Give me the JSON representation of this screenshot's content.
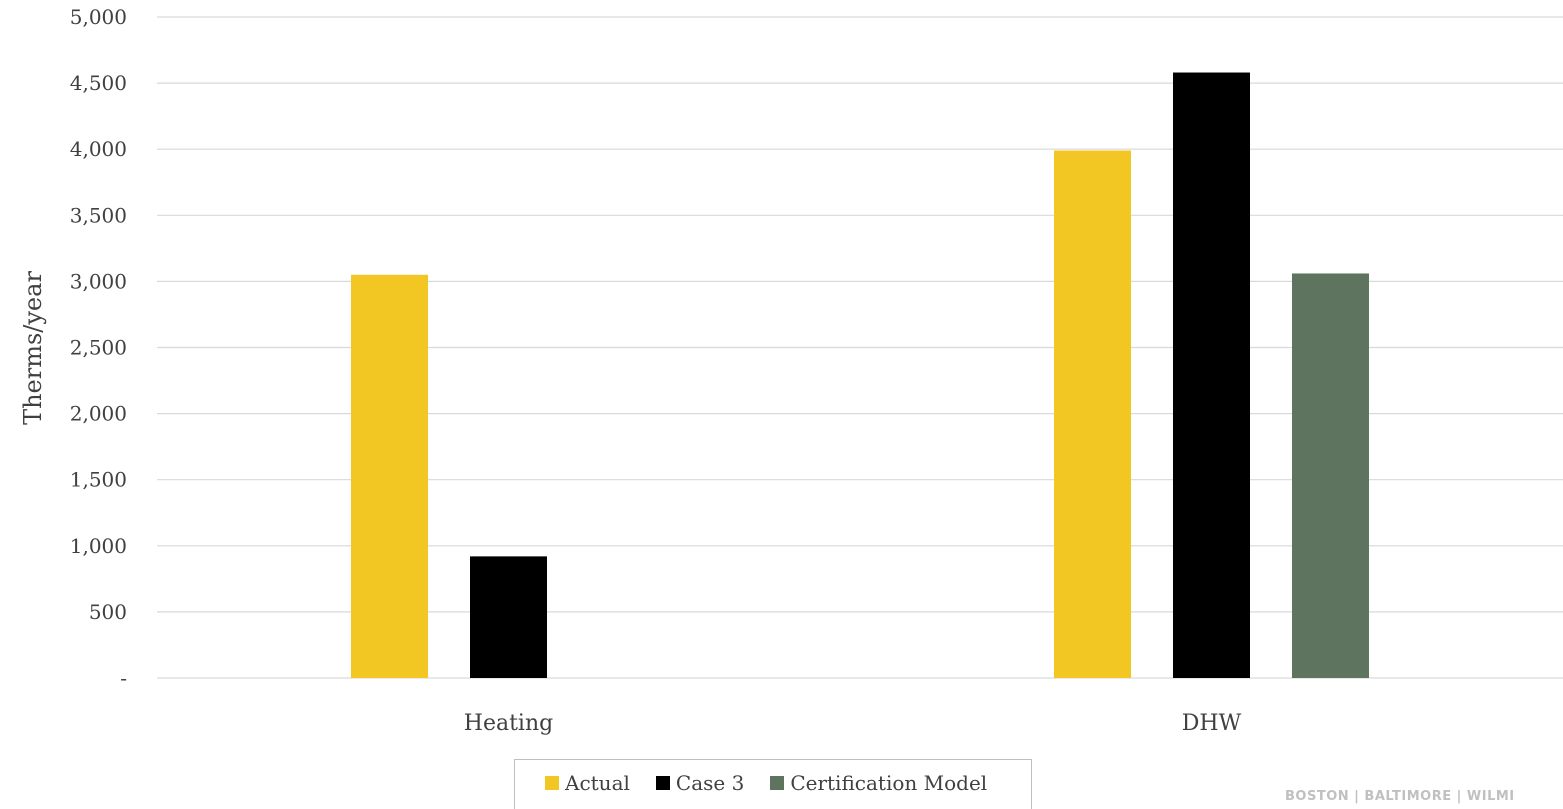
{
  "chart_data": {
    "type": "bar",
    "categories": [
      "Heating",
      "DHW"
    ],
    "series": [
      {
        "name": "Actual",
        "color": "#F2C723",
        "values": [
          3050,
          3990
        ]
      },
      {
        "name": "Case 3",
        "color": "#000000",
        "values": [
          920,
          4580
        ]
      },
      {
        "name": "Certification Model",
        "color": "#5E745E",
        "values": [
          null,
          3060
        ]
      }
    ],
    "ylabel": "Therms/year",
    "xlabel": "",
    "ylim": [
      0,
      5000
    ],
    "yticks": [
      0,
      500,
      1000,
      1500,
      2000,
      2500,
      3000,
      3500,
      4000,
      4500,
      5000
    ],
    "ytick_labels": [
      "-",
      "500",
      "1,000",
      "1,500",
      "2,000",
      "2,500",
      "3,000",
      "3,500",
      "4,000",
      "4,500",
      "5,000"
    ],
    "grid": true,
    "legend_position": "bottom"
  },
  "footer": {
    "text": "BOSTON | BALTIMORE | WILMI"
  }
}
